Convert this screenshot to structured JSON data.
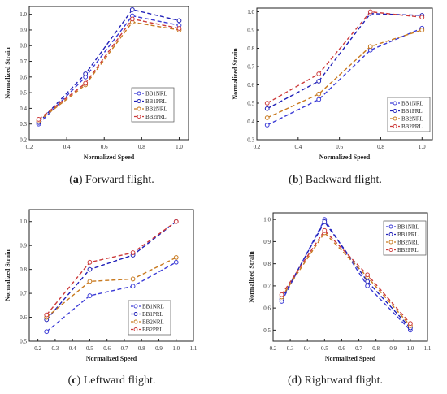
{
  "panels": [
    {
      "caption": {
        "tag": "a",
        "text": "Forward flight."
      }
    },
    {
      "caption": {
        "tag": "b",
        "text": "Backward flight."
      }
    },
    {
      "caption": {
        "tag": "c",
        "text": "Leftward flight."
      }
    },
    {
      "caption": {
        "tag": "d",
        "text": "Rightward flight."
      }
    }
  ],
  "series_colors": {
    "BB1NRL": "#3b3bd6",
    "BB1PRL": "#2020b8",
    "BB2NRL": "#c8791e",
    "BB2PRL": "#cc3a3a"
  },
  "chart_data": [
    {
      "type": "line",
      "xlabel": "Normalized Speed",
      "ylabel": "Normalized Strain",
      "xlim": [
        0.2,
        1.05
      ],
      "ylim": [
        0.2,
        1.05
      ],
      "xticks": [
        "0.2",
        "0.4",
        "0.6",
        "0.8",
        "1.0"
      ],
      "yticks": [
        "0.2",
        "0.3",
        "0.4",
        "0.5",
        "0.6",
        "0.7",
        "0.8",
        "0.9",
        "1.0"
      ],
      "legend_position": "bottom-right",
      "x": [
        0.25,
        0.5,
        0.75,
        1.0
      ],
      "series": [
        {
          "name": "BB1NRL",
          "values": [
            0.3,
            0.6,
            0.99,
            0.93
          ]
        },
        {
          "name": "BB1PRL",
          "values": [
            0.31,
            0.62,
            1.03,
            0.96
          ]
        },
        {
          "name": "BB2NRL",
          "values": [
            0.32,
            0.55,
            0.95,
            0.9
          ]
        },
        {
          "name": "BB2PRL",
          "values": [
            0.33,
            0.56,
            0.97,
            0.91
          ]
        }
      ]
    },
    {
      "type": "line",
      "xlabel": "Normalized Speed",
      "ylabel": "Normalized Strain",
      "xlim": [
        0.2,
        1.05
      ],
      "ylim": [
        0.3,
        1.02
      ],
      "xticks": [
        "0.2",
        "0.4",
        "0.6",
        "0.8",
        "1.0"
      ],
      "yticks": [
        "0.3",
        "0.4",
        "0.5",
        "0.6",
        "0.7",
        "0.8",
        "0.9",
        "1.0"
      ],
      "legend_position": "bottom-right",
      "x": [
        0.25,
        0.5,
        0.75,
        1.0
      ],
      "series": [
        {
          "name": "BB1NRL",
          "values": [
            0.38,
            0.52,
            0.79,
            0.91
          ]
        },
        {
          "name": "BB1PRL",
          "values": [
            0.47,
            0.62,
            0.99,
            0.98
          ]
        },
        {
          "name": "BB2NRL",
          "values": [
            0.42,
            0.55,
            0.81,
            0.9
          ]
        },
        {
          "name": "BB2PRL",
          "values": [
            0.5,
            0.66,
            1.0,
            0.97
          ]
        }
      ]
    },
    {
      "type": "line",
      "xlabel": "Normalized Speed",
      "ylabel": "Normalized Strain",
      "xlim": [
        0.15,
        1.1
      ],
      "ylim": [
        0.5,
        1.05
      ],
      "xticks": [
        "0.2",
        "0.3",
        "0.4",
        "0.5",
        "0.6",
        "0.7",
        "0.8",
        "0.9",
        "1.0",
        "1.1"
      ],
      "yticks": [
        "0.5",
        "0.6",
        "0.7",
        "0.8",
        "0.9",
        "1.0"
      ],
      "legend_position": "bottom-right",
      "x": [
        0.25,
        0.5,
        0.75,
        1.0
      ],
      "series": [
        {
          "name": "BB1NRL",
          "values": [
            0.54,
            0.69,
            0.73,
            0.83
          ]
        },
        {
          "name": "BB1PRL",
          "values": [
            0.59,
            0.8,
            0.86,
            1.0
          ]
        },
        {
          "name": "BB2NRL",
          "values": [
            0.6,
            0.75,
            0.76,
            0.85
          ]
        },
        {
          "name": "BB2PRL",
          "values": [
            0.61,
            0.83,
            0.87,
            1.0
          ]
        }
      ]
    },
    {
      "type": "line",
      "xlabel": "Normalized Speed",
      "ylabel": "Normalized Strain",
      "xlim": [
        0.2,
        1.1
      ],
      "ylim": [
        0.45,
        1.03
      ],
      "xticks": [
        "0.2",
        "0.3",
        "0.4",
        "0.5",
        "0.6",
        "0.7",
        "0.8",
        "0.9",
        "1.0",
        "1.1"
      ],
      "yticks": [
        "0.5",
        "0.6",
        "0.7",
        "0.8",
        "0.9",
        "1.0"
      ],
      "legend_position": "top-right",
      "x": [
        0.25,
        0.5,
        0.75,
        1.0
      ],
      "series": [
        {
          "name": "BB1NRL",
          "values": [
            0.63,
            1.0,
            0.7,
            0.5
          ]
        },
        {
          "name": "BB1PRL",
          "values": [
            0.64,
            0.99,
            0.72,
            0.51
          ]
        },
        {
          "name": "BB2NRL",
          "values": [
            0.65,
            0.94,
            0.74,
            0.52
          ]
        },
        {
          "name": "BB2PRL",
          "values": [
            0.66,
            0.95,
            0.75,
            0.53
          ]
        }
      ]
    }
  ]
}
